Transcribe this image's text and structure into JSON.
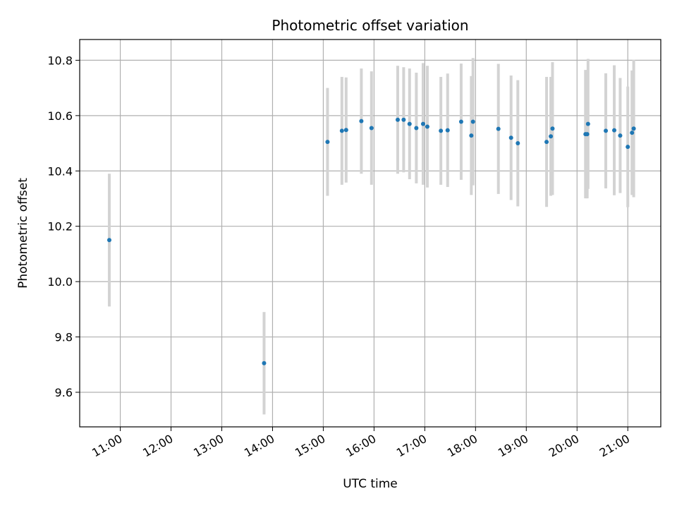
{
  "chart_data": {
    "type": "scatter",
    "title": "Photometric offset variation",
    "xlabel": "UTC time",
    "ylabel": "Photometric offset",
    "xlim": [
      "10:12",
      "21:39"
    ],
    "ylim": [
      9.475,
      10.875
    ],
    "grid": true,
    "x_ticks": [
      "11:00",
      "12:00",
      "13:00",
      "14:00",
      "15:00",
      "16:00",
      "17:00",
      "18:00",
      "19:00",
      "20:00",
      "21:00"
    ],
    "y_ticks": [
      "9.6",
      "9.8",
      "10.0",
      "10.2",
      "10.4",
      "10.6",
      "10.8"
    ],
    "colors": {
      "points": "#1f77b4",
      "error_bars": "#d3d3d3",
      "grid": "#b0b0b0"
    },
    "series": [
      {
        "points": [
          {
            "x": "10:47",
            "y": 10.15,
            "err": 0.24
          },
          {
            "x": "13:50",
            "y": 9.705,
            "err": 0.185
          },
          {
            "x": "15:05",
            "y": 10.505,
            "err": 0.195
          },
          {
            "x": "15:22",
            "y": 10.545,
            "err": 0.195
          },
          {
            "x": "15:27",
            "y": 10.548,
            "err": 0.19
          },
          {
            "x": "15:45",
            "y": 10.58,
            "err": 0.19
          },
          {
            "x": "15:57",
            "y": 10.555,
            "err": 0.205
          },
          {
            "x": "16:28",
            "y": 10.585,
            "err": 0.195
          },
          {
            "x": "16:35",
            "y": 10.585,
            "err": 0.19
          },
          {
            "x": "16:42",
            "y": 10.57,
            "err": 0.2
          },
          {
            "x": "16:50",
            "y": 10.555,
            "err": 0.2
          },
          {
            "x": "16:58",
            "y": 10.57,
            "err": 0.22
          },
          {
            "x": "17:03",
            "y": 10.56,
            "err": 0.22
          },
          {
            "x": "17:19",
            "y": 10.545,
            "err": 0.195
          },
          {
            "x": "17:27",
            "y": 10.547,
            "err": 0.205
          },
          {
            "x": "17:43",
            "y": 10.578,
            "err": 0.21
          },
          {
            "x": "17:55",
            "y": 10.528,
            "err": 0.215
          },
          {
            "x": "17:57",
            "y": 10.578,
            "err": 0.23
          },
          {
            "x": "18:27",
            "y": 10.552,
            "err": 0.235
          },
          {
            "x": "18:42",
            "y": 10.52,
            "err": 0.225
          },
          {
            "x": "18:50",
            "y": 10.5,
            "err": 0.228
          },
          {
            "x": "19:24",
            "y": 10.505,
            "err": 0.235
          },
          {
            "x": "19:29",
            "y": 10.525,
            "err": 0.215
          },
          {
            "x": "19:31",
            "y": 10.553,
            "err": 0.24
          },
          {
            "x": "20:10",
            "y": 10.533,
            "err": 0.232
          },
          {
            "x": "20:12",
            "y": 10.533,
            "err": 0.232
          },
          {
            "x": "20:13",
            "y": 10.57,
            "err": 0.235
          },
          {
            "x": "20:34",
            "y": 10.545,
            "err": 0.208
          },
          {
            "x": "20:44",
            "y": 10.547,
            "err": 0.235
          },
          {
            "x": "20:51",
            "y": 10.528,
            "err": 0.208
          },
          {
            "x": "21:00",
            "y": 10.487,
            "err": 0.218
          },
          {
            "x": "21:05",
            "y": 10.538,
            "err": 0.225
          },
          {
            "x": "21:07",
            "y": 10.553,
            "err": 0.248
          }
        ]
      }
    ]
  }
}
